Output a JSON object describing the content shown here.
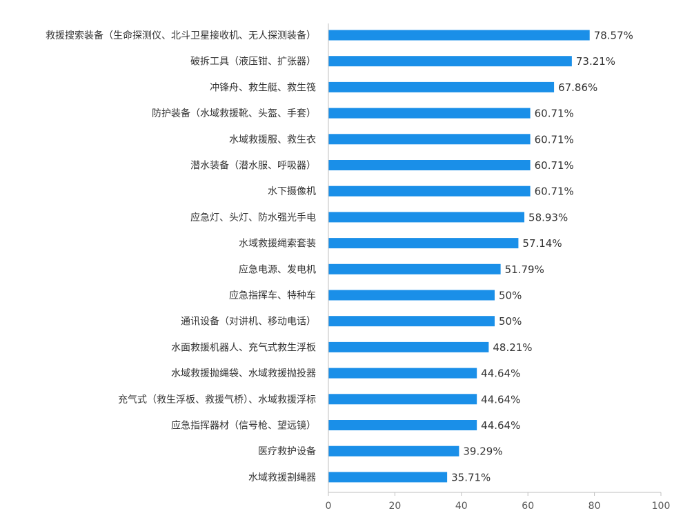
{
  "chart_data": {
    "type": "bar",
    "orientation": "horizontal",
    "categories": [
      "救援搜索装备（生命探测仪、北斗卫星接收机、无人探测装备）",
      "破拆工具（液压钳、扩张器）",
      "冲锋舟、救生艇、救生筏",
      "防护装备（水域救援靴、头盔、手套）",
      "水域救援服、救生衣",
      "潜水装备（潜水服、呼吸器）",
      "水下摄像机",
      "应急灯、头灯、防水强光手电",
      "水域救援绳索套装",
      "应急电源、发电机",
      "应急指挥车、特种车",
      "通讯设备（对讲机、移动电话）",
      "水面救援机器人、充气式救生浮板",
      "水域救援抛绳袋、水域救援抛投器",
      "充气式（救生浮板、救援气桥）、水域救援浮标",
      "应急指挥器材（信号枪、望远镜）",
      "医疗救护设备",
      "水域救援割绳器"
    ],
    "values": [
      78.57,
      73.21,
      67.86,
      60.71,
      60.71,
      60.71,
      60.71,
      58.93,
      57.14,
      51.79,
      50,
      50,
      48.21,
      44.64,
      44.64,
      44.64,
      39.29,
      35.71
    ],
    "value_labels": [
      "78.57%",
      "73.21%",
      "67.86%",
      "60.71%",
      "60.71%",
      "60.71%",
      "60.71%",
      "58.93%",
      "57.14%",
      "51.79%",
      "50%",
      "50%",
      "48.21%",
      "44.64%",
      "44.64%",
      "44.64%",
      "39.29%",
      "35.71%"
    ],
    "xlim": [
      0,
      100
    ],
    "x_ticks": [
      "0",
      "20",
      "40",
      "60",
      "80",
      "100"
    ],
    "title": "",
    "xlabel": "",
    "ylabel": "",
    "grid": false,
    "legend": "none",
    "colors": {
      "bar": "#1a8fe8",
      "axis": "#bfbfbf",
      "text": "#333333"
    }
  }
}
